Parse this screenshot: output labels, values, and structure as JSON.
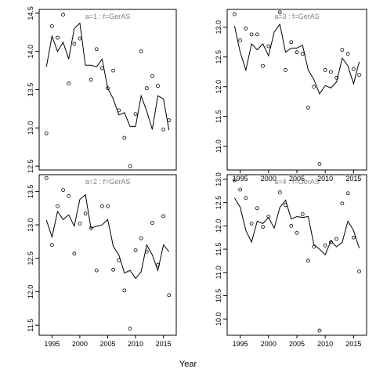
{
  "chart_data": {
    "type": "line",
    "xlabel": "Year",
    "ylabel": "",
    "x": [
      1994,
      1995,
      1996,
      1997,
      1998,
      1999,
      2000,
      2001,
      2002,
      2003,
      2004,
      2005,
      2006,
      2007,
      2008,
      2009,
      2010,
      2011,
      2012,
      2013,
      2014,
      2015,
      2016
    ],
    "panels": [
      {
        "title": "a=1  :  f=GerAS",
        "ylim": [
          12.45,
          14.55
        ],
        "yticks": [
          "12.5",
          "13.0",
          "13.5",
          "14.0",
          "14.5"
        ],
        "xticks": [],
        "series": [
          {
            "type": "line",
            "values": [
              13.8,
              14.2,
              14.0,
              14.12,
              13.9,
              14.3,
              14.37,
              13.82,
              13.82,
              13.8,
              13.9,
              13.52,
              13.38,
              13.17,
              13.2,
              13.02,
              13.02,
              13.42,
              13.22,
              12.98,
              13.42,
              13.38,
              12.97
            ]
          },
          {
            "type": "points",
            "values": [
              12.93,
              14.33,
              14.18,
              14.48,
              13.58,
              14.1,
              14.17,
              null,
              13.63,
              14.03,
              13.78,
              13.52,
              13.75,
              13.23,
              12.87,
              12.5,
              13.18,
              14.0,
              13.52,
              13.68,
              13.55,
              12.98,
              13.1
            ]
          }
        ]
      },
      {
        "title": "a=3  :  f=GerAS",
        "ylim": [
          10.6,
          13.3
        ],
        "yticks": [
          "11.0",
          "11.5",
          "12.0",
          "12.5",
          "13.0"
        ],
        "xticks": [
          "1995",
          "2000",
          "2005",
          "2010",
          "2015"
        ],
        "series": [
          {
            "type": "line",
            "values": [
              13.02,
              12.58,
              12.28,
              12.72,
              12.62,
              12.72,
              12.52,
              12.92,
              13.05,
              12.58,
              12.65,
              12.65,
              12.7,
              12.28,
              12.12,
              11.88,
              12.02,
              11.98,
              12.08,
              12.48,
              12.35,
              12.05,
              12.42
            ]
          },
          {
            "type": "points",
            "values": [
              13.22,
              12.78,
              12.98,
              12.88,
              12.88,
              12.35,
              12.68,
              null,
              13.25,
              12.28,
              12.75,
              12.58,
              12.55,
              11.65,
              12.0,
              10.7,
              12.28,
              12.25,
              12.15,
              12.62,
              12.55,
              12.3,
              12.2
            ]
          }
        ]
      },
      {
        "title": "a=2  :  f=GerAS",
        "ylim": [
          11.35,
          13.75
        ],
        "yticks": [
          "11.5",
          "12.0",
          "12.5",
          "13.0",
          "13.5"
        ],
        "xticks": [
          "1995",
          "2000",
          "2005",
          "2010",
          "2015"
        ],
        "series": [
          {
            "type": "line",
            "values": [
              13.07,
              12.82,
              13.2,
              13.08,
              13.15,
              12.98,
              13.38,
              13.45,
              12.95,
              12.98,
              13.0,
              13.08,
              12.68,
              12.55,
              12.28,
              12.32,
              12.2,
              12.3,
              12.7,
              12.55,
              12.32,
              12.7,
              12.6
            ]
          },
          {
            "type": "points",
            "values": [
              13.7,
              12.7,
              13.28,
              13.52,
              13.43,
              12.57,
              13.02,
              13.17,
              12.95,
              12.32,
              13.28,
              13.28,
              12.33,
              12.47,
              12.02,
              11.45,
              12.62,
              12.8,
              12.6,
              13.03,
              12.4,
              13.13,
              11.95
            ]
          }
        ]
      },
      {
        "title": "a=4  :  f=GerAS",
        "ylim": [
          9.65,
          13.1
        ],
        "yticks": [
          "10.0",
          "10.5",
          "11.0",
          "11.5",
          "12.0",
          "12.5",
          "13.0"
        ],
        "xticks": [
          "1995",
          "2000",
          "2005",
          "2010",
          "2015"
        ],
        "series": [
          {
            "type": "line",
            "values": [
              12.6,
              12.4,
              11.9,
              11.65,
              12.1,
              12.05,
              12.18,
              11.95,
              12.4,
              12.55,
              12.15,
              12.2,
              12.18,
              12.2,
              11.6,
              11.5,
              11.38,
              11.68,
              11.55,
              11.65,
              12.1,
              11.9,
              11.52
            ]
          },
          {
            "type": "points",
            "values": [
              12.98,
              12.78,
              12.6,
              12.05,
              12.38,
              11.98,
              12.2,
              null,
              12.72,
              12.45,
              12.0,
              11.85,
              12.25,
              11.25,
              11.55,
              9.75,
              11.58,
              11.65,
              11.72,
              12.48,
              12.7,
              11.75,
              11.02
            ]
          }
        ]
      }
    ]
  }
}
